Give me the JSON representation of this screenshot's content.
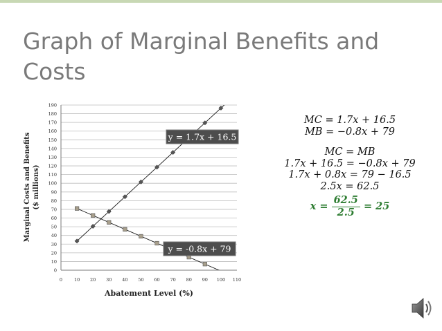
{
  "slide": {
    "title": "Graph of Marginal Benefits and Costs"
  },
  "chart_data": {
    "type": "line",
    "xlabel": "Abatement Level (%)",
    "ylabel": "Marginal Costs and Benefits ($ millions)",
    "xlim": [
      0,
      110
    ],
    "ylim": [
      0,
      190
    ],
    "xticks": [
      0,
      10,
      20,
      30,
      40,
      50,
      60,
      70,
      80,
      90,
      100,
      110
    ],
    "yticks": [
      0,
      10,
      20,
      30,
      40,
      50,
      60,
      70,
      80,
      90,
      100,
      110,
      120,
      130,
      140,
      150,
      160,
      170,
      180,
      190
    ],
    "grid": "horizontal",
    "series": [
      {
        "marker": "diamond",
        "color": "#555555",
        "x": [
          10,
          20,
          30,
          40,
          50,
          60,
          70,
          80,
          90,
          100
        ],
        "y": [
          33.5,
          50.5,
          67.5,
          84.5,
          101.5,
          118.5,
          135.5,
          152.5,
          169.5,
          186.5
        ],
        "trend_label": "y = 1.7x + 16.5"
      },
      {
        "marker": "square",
        "color": "#a89f8c",
        "x": [
          10,
          20,
          30,
          40,
          50,
          60,
          70,
          80,
          90
        ],
        "y": [
          71,
          63,
          55,
          47,
          39,
          31,
          23,
          15,
          7
        ],
        "trend_label": "y = -0.8x + 79"
      }
    ]
  },
  "equations": {
    "mc": "MC = 1.7x + 16.5",
    "mb": "MB = −0.8x + 79",
    "set_equal": "MC = MB",
    "step1": "1.7x + 16.5 = −0.8x + 79",
    "step2": "1.7x + 0.8x = 79 − 16.5",
    "step3": "2.5x = 62.5",
    "result_lhs": "x =",
    "result_num": "62.5",
    "result_den": "2.5",
    "result_rhs": "= 25"
  }
}
